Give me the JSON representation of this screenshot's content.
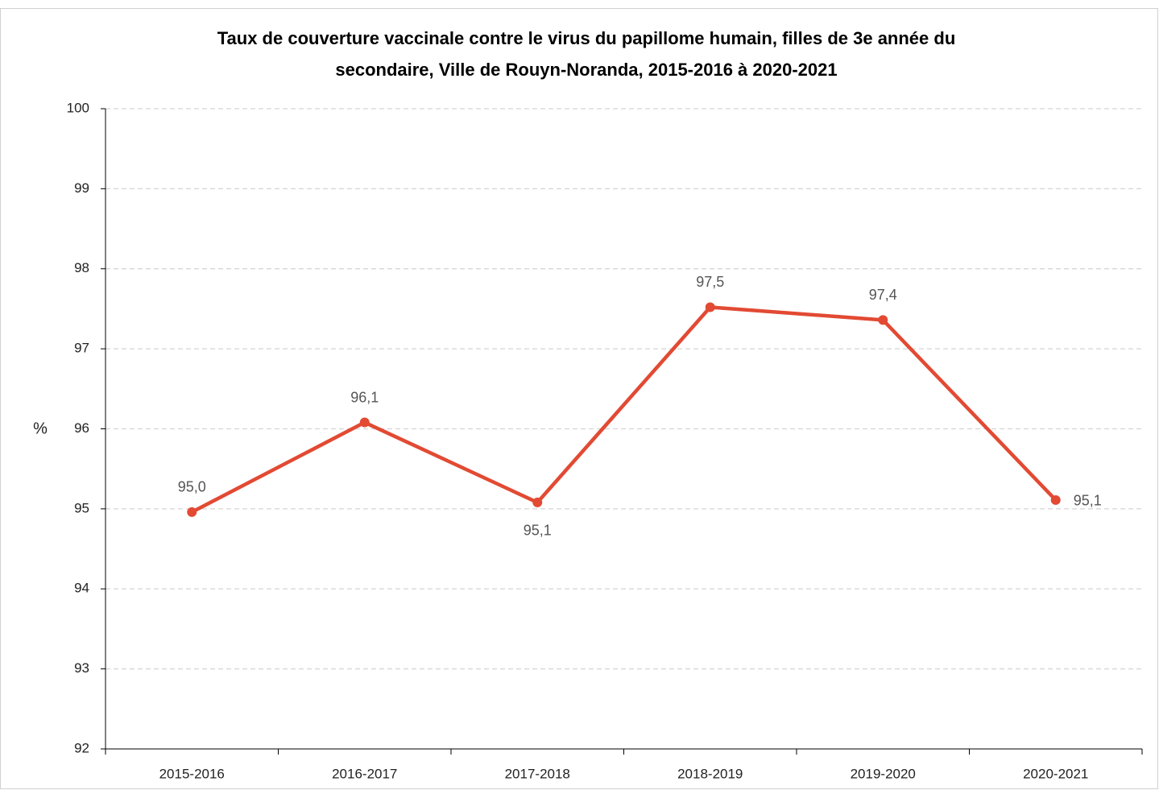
{
  "chart_data": {
    "type": "line",
    "title": [
      "Taux de couverture vaccinale contre le virus du papillome humain, filles de 3e année du",
      "secondaire, Ville de Rouyn-Noranda, 2015-2016 à 2020-2021"
    ],
    "y_label": "%",
    "categories": [
      "2015-2016",
      "2016-2017",
      "2017-2018",
      "2018-2019",
      "2019-2020",
      "2020-2021"
    ],
    "series": [
      {
        "name": "Taux de couverture",
        "color": "#e24a33",
        "values": [
          94.96,
          96.08,
          95.08,
          97.52,
          97.36,
          95.11
        ],
        "value_labels": [
          "95,0",
          "96,1",
          "95,1",
          "97,5",
          "97,4",
          "95,1"
        ]
      }
    ],
    "ylim": [
      92,
      100
    ],
    "yticks": [
      92,
      93,
      94,
      95,
      96,
      97,
      98,
      99,
      100
    ],
    "grid": true
  }
}
